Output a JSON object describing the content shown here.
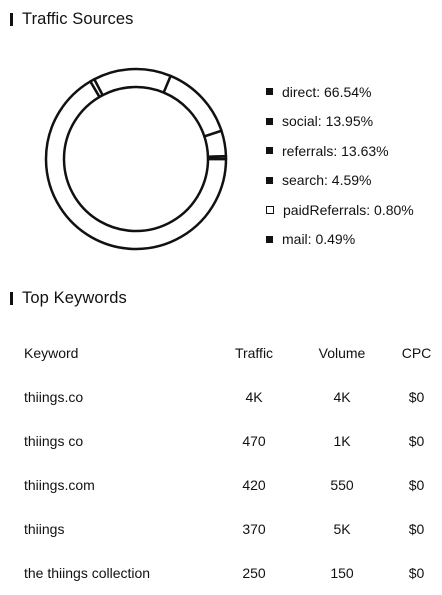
{
  "traffic_sources": {
    "title": "Traffic Sources",
    "items": [
      {
        "label": "direct: 66.54%",
        "value": 66.54,
        "style": "filled"
      },
      {
        "label": "social: 13.95%",
        "value": 13.95,
        "style": "filled"
      },
      {
        "label": "referrals: 13.63%",
        "value": 13.63,
        "style": "filled"
      },
      {
        "label": "search: 4.59%",
        "value": 4.59,
        "style": "filled"
      },
      {
        "label": "paidReferrals: 0.80%",
        "value": 0.8,
        "style": "hollow"
      },
      {
        "label": "mail: 0.49%",
        "value": 0.49,
        "style": "filled"
      }
    ]
  },
  "chart_data": {
    "type": "pie",
    "categories": [
      "direct",
      "social",
      "referrals",
      "search",
      "paidReferrals",
      "mail"
    ],
    "values": [
      66.54,
      13.95,
      13.63,
      4.59,
      0.8,
      0.49
    ]
  },
  "top_keywords": {
    "title": "Top Keywords",
    "columns": [
      "Keyword",
      "Traffic",
      "Volume",
      "CPC"
    ],
    "rows": [
      [
        "thiings.co",
        "4K",
        "4K",
        "$0"
      ],
      [
        "thiings co",
        "470",
        "1K",
        "$0"
      ],
      [
        "thiings.com",
        "420",
        "550",
        "$0"
      ],
      [
        "thiings",
        "370",
        "5K",
        "$0"
      ],
      [
        "the thiings collection",
        "250",
        "150",
        "$0"
      ]
    ]
  },
  "colors": {
    "ink": "#111111",
    "background": "#ffffff"
  }
}
